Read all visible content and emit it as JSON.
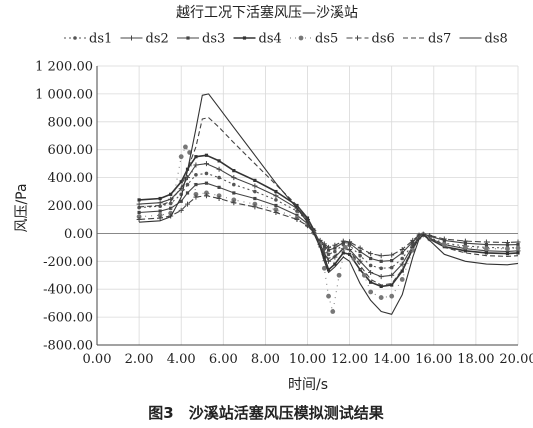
{
  "chart_data": {
    "type": "line",
    "title": "越行工况下活塞风压—沙溪站",
    "xlabel": "时间/s",
    "ylabel": "风压/Pa",
    "caption": "图3　沙溪站活塞风压模拟测试结果",
    "xlim": [
      0,
      20
    ],
    "ylim": [
      -800,
      1200
    ],
    "x_ticks": [
      "0.00",
      "2.00",
      "4.00",
      "6.00",
      "8.00",
      "10.00",
      "12.00",
      "14.00",
      "16.00",
      "18.00",
      "20.00"
    ],
    "y_ticks": [
      "-800.00",
      "-600.00",
      "-400.00",
      "-200.00",
      "0.00",
      "200.00",
      "400.00",
      "600.00",
      "800.00",
      "1 000.00",
      "1 200.00"
    ],
    "grid": true,
    "legend_position": "top",
    "series": [
      {
        "name": "ds1",
        "style": "dots-dash",
        "color": "#555555",
        "points": [
          [
            2,
            185
          ],
          [
            3,
            195
          ],
          [
            3.5,
            215
          ],
          [
            4,
            280
          ],
          [
            4.3,
            350
          ],
          [
            4.7,
            420
          ],
          [
            5.2,
            430
          ],
          [
            5.8,
            400
          ],
          [
            6.5,
            350
          ],
          [
            7.5,
            300
          ],
          [
            8.5,
            240
          ],
          [
            9.5,
            160
          ],
          [
            10,
            90
          ],
          [
            10.3,
            20
          ],
          [
            10.6,
            -70
          ],
          [
            10.8,
            -110
          ],
          [
            11,
            -150
          ],
          [
            11.3,
            -130
          ],
          [
            11.7,
            -80
          ],
          [
            12,
            -85
          ],
          [
            12.5,
            -160
          ],
          [
            13,
            -230
          ],
          [
            13.5,
            -250
          ],
          [
            14,
            -245
          ],
          [
            14.5,
            -180
          ],
          [
            15,
            -80
          ],
          [
            15.3,
            -20
          ],
          [
            15.5,
            -10
          ],
          [
            15.8,
            -30
          ],
          [
            16.5,
            -70
          ],
          [
            17.5,
            -90
          ],
          [
            18.5,
            -100
          ],
          [
            19.5,
            -105
          ],
          [
            20,
            -100
          ]
        ]
      },
      {
        "name": "ds2",
        "style": "solid-plus",
        "color": "#444444",
        "points": [
          [
            2,
            210
          ],
          [
            3,
            220
          ],
          [
            3.5,
            245
          ],
          [
            4,
            320
          ],
          [
            4.3,
            400
          ],
          [
            4.7,
            490
          ],
          [
            5.2,
            500
          ],
          [
            5.8,
            460
          ],
          [
            6.5,
            400
          ],
          [
            7.5,
            340
          ],
          [
            8.5,
            270
          ],
          [
            9.5,
            180
          ],
          [
            10,
            100
          ],
          [
            10.3,
            20
          ],
          [
            10.6,
            -80
          ],
          [
            10.8,
            -140
          ],
          [
            11,
            -200
          ],
          [
            11.3,
            -170
          ],
          [
            11.7,
            -110
          ],
          [
            12,
            -115
          ],
          [
            12.5,
            -200
          ],
          [
            13,
            -280
          ],
          [
            13.5,
            -310
          ],
          [
            14,
            -300
          ],
          [
            14.5,
            -220
          ],
          [
            15,
            -90
          ],
          [
            15.3,
            -25
          ],
          [
            15.5,
            -10
          ],
          [
            15.8,
            -35
          ],
          [
            16.5,
            -80
          ],
          [
            17.5,
            -110
          ],
          [
            18.5,
            -125
          ],
          [
            19.5,
            -130
          ],
          [
            20,
            -125
          ]
        ]
      },
      {
        "name": "ds3",
        "style": "solid-marker",
        "color": "#444444",
        "points": [
          [
            2,
            150
          ],
          [
            3,
            160
          ],
          [
            3.5,
            180
          ],
          [
            4,
            230
          ],
          [
            4.3,
            290
          ],
          [
            4.7,
            350
          ],
          [
            5.2,
            360
          ],
          [
            5.8,
            330
          ],
          [
            6.5,
            290
          ],
          [
            7.5,
            250
          ],
          [
            8.5,
            200
          ],
          [
            9.5,
            130
          ],
          [
            10,
            70
          ],
          [
            10.3,
            10
          ],
          [
            10.6,
            -60
          ],
          [
            10.8,
            -90
          ],
          [
            11,
            -120
          ],
          [
            11.3,
            -105
          ],
          [
            11.7,
            -65
          ],
          [
            12,
            -70
          ],
          [
            12.5,
            -130
          ],
          [
            13,
            -180
          ],
          [
            13.5,
            -200
          ],
          [
            14,
            -195
          ],
          [
            14.5,
            -140
          ],
          [
            15,
            -60
          ],
          [
            15.3,
            -15
          ],
          [
            15.5,
            -5
          ],
          [
            15.8,
            -20
          ],
          [
            16.5,
            -50
          ],
          [
            17.5,
            -70
          ],
          [
            18.5,
            -80
          ],
          [
            19.5,
            -82
          ],
          [
            20,
            -80
          ]
        ]
      },
      {
        "name": "ds4",
        "style": "solid-bold",
        "color": "#333333",
        "points": [
          [
            2,
            240
          ],
          [
            3,
            250
          ],
          [
            3.5,
            280
          ],
          [
            4,
            370
          ],
          [
            4.3,
            460
          ],
          [
            4.7,
            550
          ],
          [
            5.2,
            560
          ],
          [
            5.8,
            520
          ],
          [
            6.5,
            450
          ],
          [
            7.5,
            380
          ],
          [
            8.5,
            300
          ],
          [
            9.5,
            200
          ],
          [
            10,
            110
          ],
          [
            10.3,
            25
          ],
          [
            10.6,
            -90
          ],
          [
            10.8,
            -170
          ],
          [
            11,
            -260
          ],
          [
            11.3,
            -220
          ],
          [
            11.7,
            -140
          ],
          [
            12,
            -150
          ],
          [
            12.5,
            -260
          ],
          [
            13,
            -350
          ],
          [
            13.5,
            -380
          ],
          [
            14,
            -370
          ],
          [
            14.5,
            -270
          ],
          [
            15,
            -110
          ],
          [
            15.3,
            -30
          ],
          [
            15.5,
            -10
          ],
          [
            15.8,
            -40
          ],
          [
            16.5,
            -95
          ],
          [
            17.5,
            -125
          ],
          [
            18.5,
            -140
          ],
          [
            19.5,
            -145
          ],
          [
            20,
            -140
          ]
        ]
      },
      {
        "name": "ds5",
        "style": "dots",
        "color": "#777777",
        "points": [
          [
            2,
            120
          ],
          [
            3,
            130
          ],
          [
            3.5,
            145
          ],
          [
            4,
            550
          ],
          [
            4.2,
            620
          ],
          [
            4.4,
            580
          ],
          [
            4.7,
            280
          ],
          [
            5.2,
            290
          ],
          [
            5.8,
            270
          ],
          [
            6.5,
            240
          ],
          [
            7.5,
            210
          ],
          [
            8.5,
            170
          ],
          [
            9.5,
            110
          ],
          [
            10,
            60
          ],
          [
            10.3,
            5
          ],
          [
            10.6,
            -70
          ],
          [
            10.8,
            -250
          ],
          [
            11,
            -450
          ],
          [
            11.2,
            -560
          ],
          [
            11.5,
            -300
          ],
          [
            11.8,
            -100
          ],
          [
            12.2,
            -180
          ],
          [
            12.7,
            -300
          ],
          [
            13,
            -420
          ],
          [
            13.5,
            -460
          ],
          [
            14,
            -450
          ],
          [
            14.5,
            -330
          ],
          [
            15,
            -120
          ],
          [
            15.3,
            -30
          ],
          [
            15.5,
            -10
          ],
          [
            15.8,
            -40
          ],
          [
            16.5,
            -80
          ],
          [
            17.5,
            -100
          ],
          [
            18.5,
            -110
          ],
          [
            19.5,
            -110
          ],
          [
            20,
            -105
          ]
        ]
      },
      {
        "name": "ds6",
        "style": "dash-plus",
        "color": "#444444",
        "points": [
          [
            2,
            100
          ],
          [
            3,
            110
          ],
          [
            3.5,
            125
          ],
          [
            4,
            165
          ],
          [
            4.3,
            210
          ],
          [
            4.7,
            260
          ],
          [
            5.2,
            270
          ],
          [
            5.8,
            250
          ],
          [
            6.5,
            220
          ],
          [
            7.5,
            190
          ],
          [
            8.5,
            150
          ],
          [
            9.5,
            100
          ],
          [
            10,
            55
          ],
          [
            10.3,
            5
          ],
          [
            10.6,
            -50
          ],
          [
            10.8,
            -75
          ],
          [
            11,
            -100
          ],
          [
            11.3,
            -85
          ],
          [
            11.7,
            -55
          ],
          [
            12,
            -60
          ],
          [
            12.5,
            -105
          ],
          [
            13,
            -145
          ],
          [
            13.5,
            -160
          ],
          [
            14,
            -155
          ],
          [
            14.5,
            -115
          ],
          [
            15,
            -50
          ],
          [
            15.3,
            -12
          ],
          [
            15.5,
            -5
          ],
          [
            15.8,
            -15
          ],
          [
            16.5,
            -40
          ],
          [
            17.5,
            -55
          ],
          [
            18.5,
            -62
          ],
          [
            19.5,
            -65
          ],
          [
            20,
            -62
          ]
        ]
      },
      {
        "name": "ds7",
        "style": "dashed",
        "color": "#444444",
        "points": [
          [
            2,
            190
          ],
          [
            3,
            200
          ],
          [
            3.5,
            230
          ],
          [
            4,
            330
          ],
          [
            4.3,
            460
          ],
          [
            4.7,
            620
          ],
          [
            5,
            820
          ],
          [
            5.3,
            830
          ],
          [
            5.8,
            760
          ],
          [
            6.5,
            650
          ],
          [
            7.5,
            500
          ],
          [
            8.5,
            350
          ],
          [
            9.5,
            200
          ],
          [
            10,
            100
          ],
          [
            10.3,
            20
          ],
          [
            10.6,
            -80
          ],
          [
            10.8,
            -150
          ],
          [
            11,
            -180
          ],
          [
            11.3,
            -160
          ],
          [
            11.7,
            -110
          ],
          [
            12,
            -120
          ],
          [
            12.5,
            -230
          ],
          [
            13,
            -330
          ],
          [
            13.5,
            -370
          ],
          [
            14,
            -360
          ],
          [
            14.5,
            -260
          ],
          [
            15,
            -100
          ],
          [
            15.3,
            -25
          ],
          [
            15.5,
            -10
          ],
          [
            15.8,
            -35
          ],
          [
            16.5,
            -100
          ],
          [
            17.5,
            -140
          ],
          [
            18.5,
            -160
          ],
          [
            19.5,
            -165
          ],
          [
            20,
            -160
          ]
        ]
      },
      {
        "name": "ds8",
        "style": "solid",
        "color": "#333333",
        "points": [
          [
            2,
            80
          ],
          [
            3,
            90
          ],
          [
            3.5,
            120
          ],
          [
            4,
            260
          ],
          [
            4.3,
            450
          ],
          [
            4.7,
            750
          ],
          [
            5,
            990
          ],
          [
            5.3,
            1000
          ],
          [
            5.8,
            900
          ],
          [
            6.5,
            760
          ],
          [
            7.5,
            560
          ],
          [
            8.5,
            360
          ],
          [
            9.5,
            180
          ],
          [
            10,
            80
          ],
          [
            10.3,
            0
          ],
          [
            10.6,
            -100
          ],
          [
            10.8,
            -200
          ],
          [
            11,
            -280
          ],
          [
            11.3,
            -240
          ],
          [
            11.7,
            -170
          ],
          [
            12,
            -200
          ],
          [
            12.5,
            -360
          ],
          [
            13,
            -480
          ],
          [
            13.5,
            -560
          ],
          [
            14,
            -580
          ],
          [
            14.5,
            -440
          ],
          [
            15,
            -170
          ],
          [
            15.3,
            -40
          ],
          [
            15.5,
            -10
          ],
          [
            15.8,
            -50
          ],
          [
            16.5,
            -150
          ],
          [
            17.5,
            -200
          ],
          [
            18.5,
            -220
          ],
          [
            19.5,
            -225
          ],
          [
            20,
            -215
          ]
        ]
      }
    ]
  }
}
